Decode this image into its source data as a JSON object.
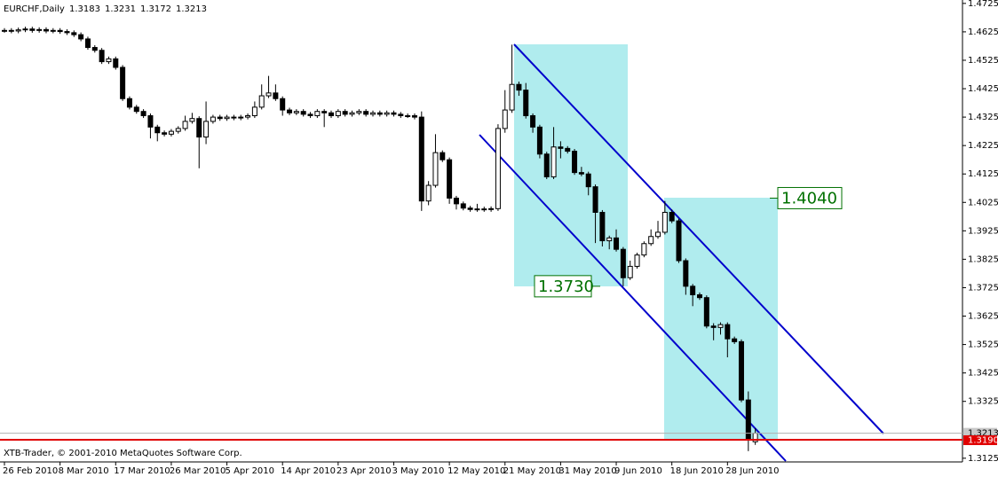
{
  "chart_data": {
    "type": "candlestick",
    "title": "EURCHF,Daily",
    "footer": "XTB-Trader, © 2001-2010 MetaQuotes Software Corp.",
    "categories": [
      "26 Feb 2010",
      null,
      null,
      null,
      null,
      null,
      null,
      null,
      "8 Mar 2010",
      null,
      null,
      null,
      null,
      null,
      null,
      null,
      "17 Mar 2010",
      null,
      null,
      null,
      null,
      null,
      null,
      null,
      "26 Mar 2010",
      null,
      null,
      null,
      null,
      null,
      null,
      null,
      "5 Apr 2010",
      null,
      null,
      null,
      null,
      null,
      null,
      null,
      "14 Apr 2010",
      null,
      null,
      null,
      null,
      null,
      null,
      null,
      "23 Apr 2010",
      null,
      null,
      null,
      null,
      null,
      null,
      null,
      "3 May 2010",
      null,
      null,
      null,
      null,
      null,
      null,
      null,
      "12 May 2010",
      null,
      null,
      null,
      null,
      null,
      null,
      null,
      "21 May 2010",
      null,
      null,
      null,
      null,
      null,
      null,
      null,
      "31 May 2010",
      null,
      null,
      null,
      null,
      null,
      null,
      null,
      "9 Jun 2010",
      null,
      null,
      null,
      null,
      null,
      null,
      null,
      "18 Jun 2010",
      null,
      null,
      null,
      null,
      null,
      null,
      null,
      "28 Jun 2010",
      null,
      null,
      null,
      null
    ],
    "open": [
      1.463,
      1.463,
      1.4628,
      1.4632,
      1.4635,
      1.463,
      1.4633,
      1.4628,
      1.463,
      1.4626,
      1.4622,
      1.4615,
      1.46,
      1.457,
      1.456,
      1.452,
      1.453,
      1.45,
      1.439,
      1.436,
      1.4345,
      1.433,
      1.429,
      1.427,
      1.4265,
      1.4275,
      1.4285,
      1.431,
      1.432,
      1.4255,
      1.431,
      1.4325,
      1.432,
      1.4325,
      1.4322,
      1.4325,
      1.433,
      1.436,
      1.44,
      1.441,
      1.439,
      1.435,
      1.434,
      1.4345,
      1.4335,
      1.433,
      1.4345,
      1.434,
      1.433,
      1.4345,
      1.4335,
      1.434,
      1.4345,
      1.4335,
      1.434,
      1.4335,
      1.434,
      1.4335,
      1.433,
      1.433,
      1.4325,
      1.403,
      1.4085,
      1.42,
      1.4175,
      1.404,
      1.402,
      1.4005,
      1.4,
      1.4002,
      1.4,
      1.4003,
      1.4285,
      1.435,
      1.444,
      1.442,
      1.433,
      1.429,
      1.4195,
      1.4115,
      1.422,
      1.4215,
      1.4205,
      1.413,
      1.4125,
      1.408,
      1.399,
      1.389,
      1.39,
      1.386,
      1.376,
      1.38,
      1.384,
      1.388,
      1.3905,
      1.392,
      1.399,
      1.396,
      1.382,
      1.373,
      1.37,
      1.369,
      1.359,
      1.3585,
      1.3595,
      1.3545,
      1.3535,
      1.333,
      1.3183
    ],
    "high": [
      1.4638,
      1.4638,
      1.464,
      1.4643,
      1.4643,
      1.4641,
      1.4641,
      1.4638,
      1.4638,
      1.4634,
      1.463,
      1.4623,
      1.4608,
      1.4578,
      1.4568,
      1.4538,
      1.4538,
      1.4508,
      1.4398,
      1.4368,
      1.4353,
      1.4338,
      1.4298,
      1.4278,
      1.4283,
      1.4293,
      1.433,
      1.434,
      1.4328,
      1.438,
      1.4333,
      1.4333,
      1.4333,
      1.4333,
      1.4333,
      1.4338,
      1.438,
      1.444,
      1.447,
      1.444,
      1.4398,
      1.4358,
      1.4353,
      1.4353,
      1.4343,
      1.4353,
      1.4353,
      1.4348,
      1.4353,
      1.4353,
      1.4348,
      1.4353,
      1.4353,
      1.4348,
      1.4348,
      1.4348,
      1.4348,
      1.4343,
      1.4338,
      1.4338,
      1.4345,
      1.41,
      1.4265,
      1.4208,
      1.4183,
      1.4048,
      1.4028,
      1.4013,
      1.402,
      1.401,
      1.4011,
      1.43,
      1.442,
      1.458,
      1.445,
      1.4445,
      1.4338,
      1.4298,
      1.4203,
      1.429,
      1.424,
      1.4223,
      1.4213,
      1.415,
      1.4133,
      1.4088,
      1.3998,
      1.3908,
      1.393,
      1.3868,
      1.382,
      1.3848,
      1.3888,
      1.393,
      1.396,
      1.403,
      1.4,
      1.3968,
      1.3828,
      1.3738,
      1.3708,
      1.3698,
      1.36,
      1.3603,
      1.3603,
      1.3553,
      1.3543,
      1.336,
      1.3231
    ],
    "low": [
      1.4622,
      1.462,
      1.462,
      1.4624,
      1.4622,
      1.4622,
      1.462,
      1.462,
      1.4618,
      1.4614,
      1.4607,
      1.4592,
      1.4562,
      1.4552,
      1.4512,
      1.4512,
      1.4492,
      1.4382,
      1.4352,
      1.4337,
      1.4322,
      1.425,
      1.424,
      1.4257,
      1.4257,
      1.4267,
      1.4277,
      1.4302,
      1.4145,
      1.423,
      1.4302,
      1.4312,
      1.4312,
      1.4314,
      1.4314,
      1.4317,
      1.4322,
      1.4352,
      1.4392,
      1.4382,
      1.433,
      1.4332,
      1.4332,
      1.4327,
      1.4322,
      1.4322,
      1.429,
      1.4322,
      1.4322,
      1.4327,
      1.4327,
      1.4332,
      1.4327,
      1.4327,
      1.4327,
      1.4327,
      1.4327,
      1.4322,
      1.4322,
      1.4317,
      1.3995,
      1.4015,
      1.4077,
      1.4167,
      1.402,
      1.4,
      1.3997,
      1.3992,
      1.3992,
      1.3992,
      1.3992,
      1.3995,
      1.427,
      1.434,
      1.44,
      1.432,
      1.427,
      1.418,
      1.4107,
      1.4107,
      1.418,
      1.4197,
      1.4122,
      1.4117,
      1.405,
      1.3882,
      1.387,
      1.386,
      1.3852,
      1.373,
      1.3752,
      1.3792,
      1.3832,
      1.3872,
      1.3897,
      1.3912,
      1.3952,
      1.3812,
      1.37,
      1.366,
      1.3682,
      1.3582,
      1.354,
      1.356,
      1.348,
      1.3527,
      1.3322,
      1.315,
      1.3172
    ],
    "close": [
      1.463,
      1.4628,
      1.4632,
      1.4635,
      1.463,
      1.4633,
      1.4628,
      1.463,
      1.4626,
      1.4622,
      1.4615,
      1.46,
      1.457,
      1.456,
      1.452,
      1.453,
      1.45,
      1.439,
      1.436,
      1.4345,
      1.433,
      1.429,
      1.427,
      1.4265,
      1.4275,
      1.4285,
      1.431,
      1.432,
      1.4255,
      1.431,
      1.4325,
      1.432,
      1.4325,
      1.4322,
      1.4325,
      1.433,
      1.436,
      1.44,
      1.441,
      1.439,
      1.435,
      1.434,
      1.4345,
      1.4335,
      1.433,
      1.4345,
      1.434,
      1.433,
      1.4345,
      1.4335,
      1.434,
      1.4345,
      1.4335,
      1.434,
      1.4335,
      1.434,
      1.4335,
      1.433,
      1.433,
      1.4325,
      1.403,
      1.4085,
      1.42,
      1.4175,
      1.404,
      1.402,
      1.4005,
      1.4,
      1.4002,
      1.4,
      1.4003,
      1.4285,
      1.435,
      1.444,
      1.442,
      1.433,
      1.429,
      1.4195,
      1.4115,
      1.422,
      1.4215,
      1.4205,
      1.413,
      1.4125,
      1.408,
      1.399,
      1.389,
      1.39,
      1.386,
      1.376,
      1.38,
      1.384,
      1.388,
      1.3905,
      1.392,
      1.399,
      1.396,
      1.382,
      1.373,
      1.37,
      1.369,
      1.359,
      1.3585,
      1.3595,
      1.3545,
      1.3535,
      1.333,
      1.319,
      1.3213
    ],
    "ylim": [
      1.3112,
      1.4737
    ],
    "yticks": [
      1.4725,
      1.4625,
      1.4525,
      1.4425,
      1.4325,
      1.4225,
      1.4125,
      1.4025,
      1.3925,
      1.3825,
      1.3725,
      1.3625,
      1.3525,
      1.3425,
      1.3325,
      1.3125
    ],
    "horizontal_line": {
      "value": 1.319,
      "label": "1.3190",
      "color": "#e00000"
    },
    "annotations": [
      {
        "value": 1.373,
        "label": "1.3730"
      },
      {
        "value": 1.404,
        "label": "1.4040"
      }
    ],
    "colors": {
      "up": "#ffffff",
      "down": "#000000",
      "zone": "#b0ecee",
      "channel": "#0000cc",
      "annotation": "#007000"
    }
  }
}
